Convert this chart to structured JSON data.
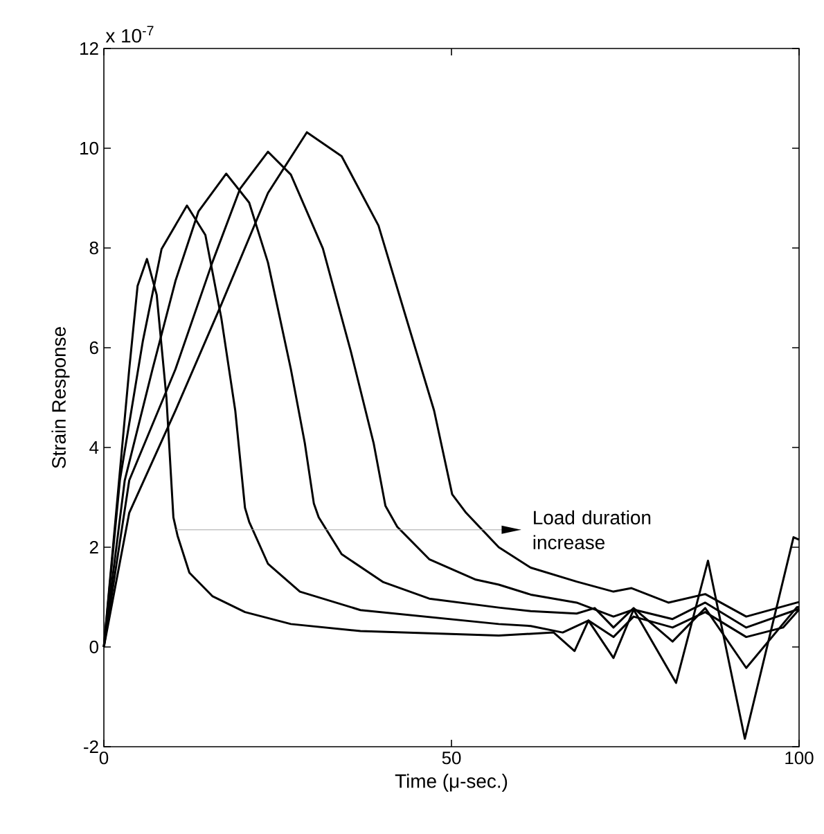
{
  "chart_data": {
    "type": "line",
    "xlabel": "Time (μ-sec.)",
    "ylabel": "Strain Response",
    "annotations": [
      "x 10$^{-7}$",
      "Load duration increase"
    ],
    "xlim": [
      0,
      100
    ],
    "ylim": [
      -2,
      12
    ],
    "xticks": [
      0,
      50,
      100
    ],
    "yticks": [
      -2,
      0,
      2,
      4,
      6,
      8,
      10,
      12
    ],
    "series": [
      {
        "color": "#000000",
        "x": [
          0,
          3.65,
          4.85,
          6.2,
          7.6,
          9.0,
          10.0,
          10.6,
          12.3,
          15.6,
          20.3,
          26.9,
          36.9,
          56.8,
          64.7,
          67.7,
          69.7,
          73.3,
          76.2,
          82.3,
          86.9,
          92.2,
          99.2,
          100
        ],
        "values": [
          0,
          5.57,
          7.24,
          7.78,
          7.06,
          5.0,
          2.6,
          2.23,
          1.49,
          1.02,
          0.7,
          0.46,
          0.32,
          0.23,
          0.29,
          -0.08,
          0.53,
          -0.22,
          0.75,
          -0.72,
          1.73,
          -1.84,
          2.2,
          2.15
        ]
      },
      {
        "color": "#000000",
        "x": [
          0,
          2.3,
          5.6,
          8.3,
          11.95,
          14.6,
          16.9,
          18.9,
          20.3,
          20.9,
          23.6,
          28.2,
          36.9,
          56.8,
          61.4,
          66,
          69.7,
          73.3,
          76.2,
          81.8,
          86.5,
          92.4,
          97.7,
          100
        ],
        "values": [
          0,
          3.34,
          6.13,
          7.98,
          8.85,
          8.26,
          6.59,
          4.74,
          2.79,
          2.51,
          1.67,
          1.11,
          0.74,
          0.46,
          0.42,
          0.29,
          0.53,
          0.2,
          0.61,
          0.39,
          0.7,
          0.2,
          0.39,
          0.75
        ]
      },
      {
        "color": "#000000",
        "x": [
          0,
          3.0,
          7.0,
          10.3,
          13.6,
          17.6,
          20.9,
          23.6,
          26.9,
          28.9,
          30.2,
          30.9,
          34.2,
          40.2,
          46.8,
          56.8,
          61.4,
          68,
          70.6,
          73.3,
          76.2,
          81.8,
          86.5,
          92.4,
          99.7,
          100
        ],
        "values": [
          0,
          3.34,
          5.57,
          7.34,
          8.73,
          9.49,
          8.91,
          7.71,
          5.57,
          4.09,
          2.88,
          2.6,
          1.86,
          1.3,
          0.97,
          0.79,
          0.72,
          0.67,
          0.78,
          0.39,
          0.78,
          0.11,
          0.78,
          -0.42,
          0.8,
          0.8
        ]
      },
      {
        "color": "#000000",
        "x": [
          0,
          3.65,
          10.3,
          15.6,
          19.6,
          23.6,
          26.9,
          31.5,
          35.5,
          38.8,
          40.5,
          42.2,
          46.8,
          53.5,
          56.8,
          61.4,
          68,
          73.3,
          76.2,
          81.8,
          86.5,
          92.4,
          99.7,
          100
        ],
        "values": [
          0,
          3.34,
          5.57,
          7.71,
          9.19,
          9.93,
          9.47,
          7.99,
          5.94,
          4.09,
          2.83,
          2.41,
          1.76,
          1.35,
          1.25,
          1.05,
          0.89,
          0.61,
          0.75,
          0.56,
          0.89,
          0.39,
          0.75,
          0.76
        ]
      },
      {
        "color": "#000000",
        "x": [
          0,
          3.65,
          10.3,
          16.9,
          23.6,
          29.2,
          34.2,
          39.5,
          43.5,
          47.5,
          50.1,
          52.1,
          56.8,
          61.4,
          68,
          73.3,
          75.9,
          81.2,
          86.5,
          92.4,
          99.7,
          100
        ],
        "values": [
          0,
          2.69,
          4.74,
          6.87,
          9.1,
          10.32,
          9.84,
          8.45,
          6.59,
          4.74,
          3.06,
          2.69,
          2.0,
          1.59,
          1.31,
          1.11,
          1.18,
          0.89,
          1.06,
          0.61,
          0.89,
          0.9
        ]
      }
    ]
  }
}
